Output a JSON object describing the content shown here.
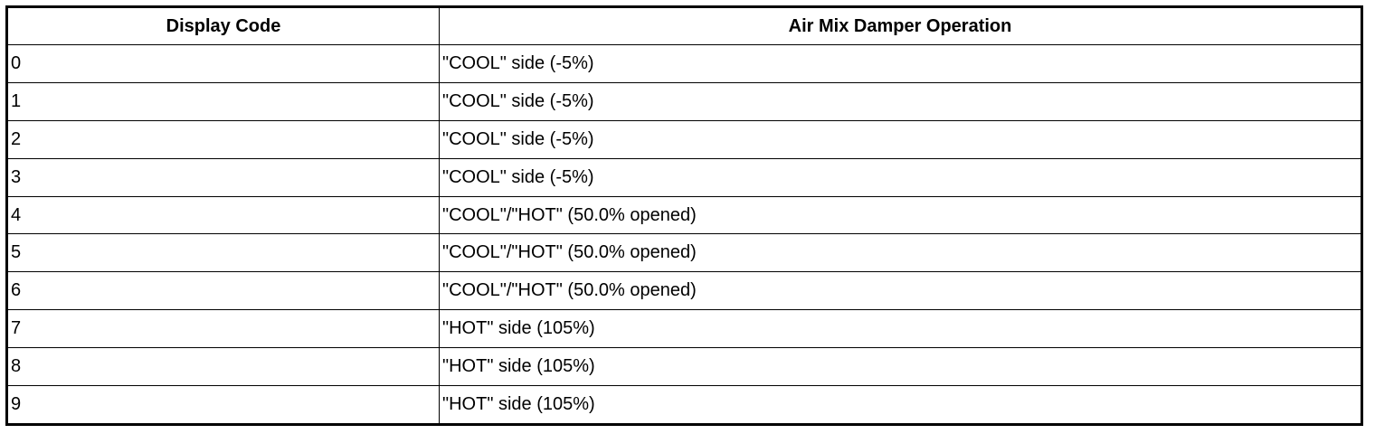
{
  "table": {
    "header": [
      "Display Code",
      "Air Mix Damper Operation"
    ],
    "rows": [
      [
        "0",
        "\"COOL\" side (-5%)"
      ],
      [
        "1",
        "\"COOL\" side (-5%)"
      ],
      [
        "2",
        "\"COOL\" side (-5%)"
      ],
      [
        "3",
        "\"COOL\" side (-5%)"
      ],
      [
        "4",
        "\"COOL\"/\"HOT\" (50.0% opened)"
      ],
      [
        "5",
        "\"COOL\"/\"HOT\" (50.0% opened)"
      ],
      [
        "6",
        "\"COOL\"/\"HOT\" (50.0% opened)"
      ],
      [
        "7",
        "\"HOT\" side (105%)"
      ],
      [
        "8",
        "\"HOT\" side (105%)"
      ],
      [
        "9",
        "\"HOT\" side (105%)"
      ]
    ]
  }
}
